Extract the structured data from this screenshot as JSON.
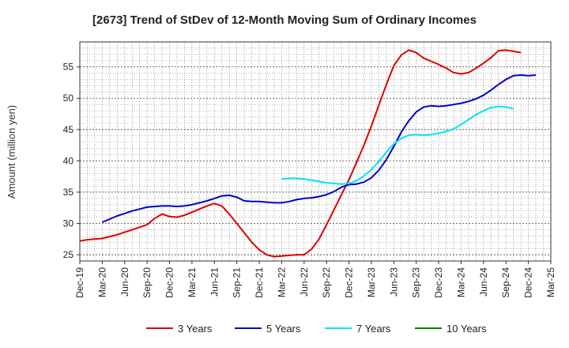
{
  "chart_data": {
    "type": "line",
    "title": "[2673]  Trend of StDev of 12-Month Moving Sum of Ordinary Incomes",
    "xlabel": "",
    "ylabel": "Amount (million yen)",
    "ylim": [
      24,
      59
    ],
    "yticks": [
      25,
      30,
      35,
      40,
      45,
      50,
      55
    ],
    "x_start": "Dec-19",
    "x_end": "Mar-25",
    "xticks": [
      "Dec-19",
      "Mar-20",
      "Jun-20",
      "Sep-20",
      "Dec-20",
      "Mar-21",
      "Jun-21",
      "Sep-21",
      "Dec-21",
      "Mar-22",
      "Jun-22",
      "Sep-22",
      "Dec-22",
      "Mar-23",
      "Jun-23",
      "Sep-23",
      "Dec-23",
      "Mar-24",
      "Jun-24",
      "Sep-24",
      "Dec-24",
      "Mar-25"
    ],
    "grid": true,
    "legend_position": "bottom",
    "series": [
      {
        "name": "3 Years",
        "color": "#dd0000",
        "start_month": 0,
        "values": [
          27.2,
          27.4,
          27.5,
          27.6,
          27.9,
          28.2,
          28.6,
          29.0,
          29.4,
          29.8,
          30.8,
          31.5,
          31.1,
          31.0,
          31.3,
          31.8,
          32.3,
          32.8,
          33.2,
          32.8,
          31.5,
          30.0,
          28.5,
          27.0,
          25.8,
          25.0,
          24.7,
          24.8,
          24.9,
          25.0,
          25.0,
          25.9,
          27.5,
          29.8,
          32.2,
          34.6,
          37.0,
          39.7,
          42.5,
          45.6,
          48.9,
          52.2,
          55.2,
          56.9,
          57.7,
          57.3,
          56.4,
          55.9,
          55.4,
          54.8,
          54.1,
          53.9,
          54.1,
          54.8,
          55.6,
          56.5,
          57.6,
          57.7,
          57.5,
          57.3
        ]
      },
      {
        "name": "5 Years",
        "color": "#0000cc",
        "start_month": 3,
        "values": [
          30.2,
          30.7,
          31.2,
          31.6,
          32.0,
          32.3,
          32.6,
          32.7,
          32.8,
          32.8,
          32.7,
          32.8,
          33.0,
          33.3,
          33.6,
          34.0,
          34.4,
          34.5,
          34.2,
          33.6,
          33.5,
          33.5,
          33.4,
          33.3,
          33.3,
          33.5,
          33.8,
          34.0,
          34.1,
          34.3,
          34.6,
          35.1,
          35.8,
          36.2,
          36.3,
          36.6,
          37.3,
          38.5,
          40.2,
          42.3,
          44.6,
          46.4,
          47.8,
          48.6,
          48.8,
          48.7,
          48.8,
          49.0,
          49.2,
          49.5,
          49.9,
          50.5,
          51.3,
          52.2,
          53.0,
          53.6,
          53.7,
          53.6,
          53.7
        ]
      },
      {
        "name": "7 Years",
        "color": "#00e5ee",
        "start_month": 27,
        "values": [
          37.1,
          37.2,
          37.2,
          37.1,
          36.9,
          36.7,
          36.5,
          36.4,
          36.3,
          36.4,
          36.8,
          37.6,
          38.6,
          39.9,
          41.4,
          42.7,
          43.6,
          44.1,
          44.2,
          44.1,
          44.2,
          44.4,
          44.7,
          45.1,
          45.8,
          46.6,
          47.4,
          48.0,
          48.5,
          48.7,
          48.6,
          48.3
        ]
      },
      {
        "name": "10 Years",
        "color": "#008000",
        "start_month": 0,
        "values": []
      }
    ]
  }
}
